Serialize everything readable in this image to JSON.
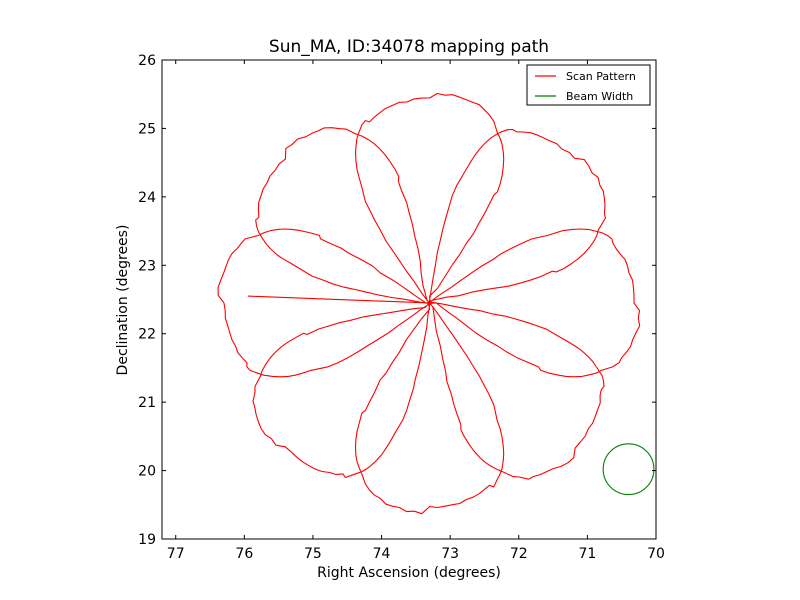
{
  "chart_data": {
    "type": "line",
    "title": "Sun_MA, ID:34078 mapping path",
    "xlabel": "Right Ascension (degrees)",
    "ylabel": "Declination (degrees)",
    "xlim": [
      77.2,
      70.0
    ],
    "ylim": [
      19.0,
      26.0
    ],
    "xticks": [
      "77",
      "76",
      "75",
      "74",
      "73",
      "72",
      "71",
      "70"
    ],
    "xtick_values": [
      77,
      76,
      75,
      74,
      73,
      72,
      71,
      70
    ],
    "yticks": [
      "19",
      "20",
      "21",
      "22",
      "23",
      "24",
      "25",
      "26"
    ],
    "ytick_values": [
      19,
      20,
      21,
      22,
      23,
      24,
      25,
      26
    ],
    "grid": false,
    "legend": {
      "position": "top-right"
    },
    "series": [
      {
        "name": "Scan Pattern",
        "color": "#ff0000",
        "center": [
          73.3,
          22.45
        ],
        "petals": 8,
        "petal_length_deg": 3.0,
        "start_point": [
          75.95,
          22.55
        ]
      },
      {
        "name": "Beam Width",
        "color": "#008000",
        "shape": "circle",
        "center": [
          70.4,
          20.02
        ],
        "radius_deg": 0.37
      }
    ]
  }
}
